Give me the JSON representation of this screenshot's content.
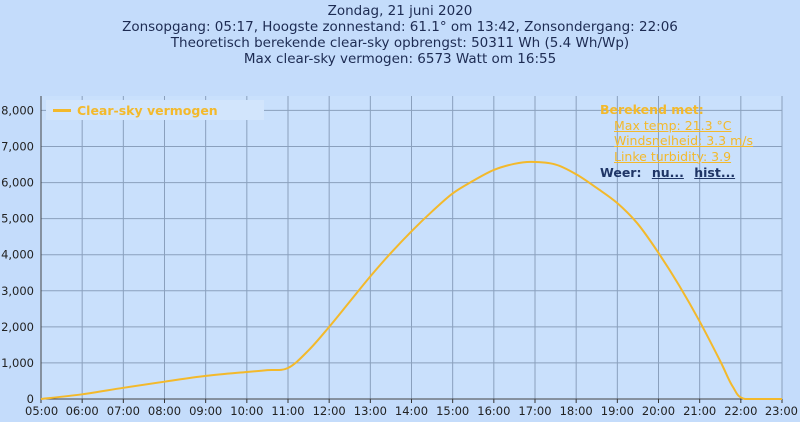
{
  "header": {
    "line1": "Zondag, 21 juni 2020",
    "line2": "Zonsopgang: 05:17, Hoogste zonnestand: 61.1° om 13:42, Zonsondergang: 22:06",
    "line3": "Theoretisch berekende clear-sky opbrengst: 50311 Wh (5.4 Wh/Wp)",
    "line4": "Max clear-sky vermogen: 6573 Watt om 16:55"
  },
  "legend": {
    "label": "Clear-sky vermogen"
  },
  "info": {
    "title": "Berekend met:",
    "max_temp": "Max temp: 21.3 °C",
    "wind": "Windsnelheid: 3.3 m/s",
    "linke": "Linke turbidity: 3.9",
    "weer_label": "Weer:",
    "weer_now": "nu...",
    "weer_hist": "hist..."
  },
  "colors": {
    "background": "#c4dcfb",
    "plot_background": "#c9e0fc",
    "grid": "#8aa0bd",
    "series": "#f3b92b",
    "text": "#1d2b52"
  },
  "chart_data": {
    "type": "line",
    "title": "",
    "xlabel": "",
    "ylabel": "",
    "x_ticks": [
      "05:00",
      "06:00",
      "07:00",
      "08:00",
      "09:00",
      "10:00",
      "11:00",
      "12:00",
      "13:00",
      "14:00",
      "15:00",
      "16:00",
      "17:00",
      "18:00",
      "19:00",
      "20:00",
      "21:00",
      "22:00",
      "23:00"
    ],
    "y_ticks": [
      "0",
      "1,000",
      "2,000",
      "3,000",
      "4,000",
      "5,000",
      "6,000",
      "7,000",
      "8,000"
    ],
    "xlim": [
      5,
      23
    ],
    "ylim": [
      0,
      8400
    ],
    "grid": true,
    "legend_position": "top-left",
    "series": [
      {
        "name": "Clear-sky vermogen",
        "x": [
          5.0,
          6.0,
          7.0,
          8.0,
          9.0,
          10.0,
          10.5,
          11.0,
          11.5,
          12.0,
          12.5,
          13.0,
          13.5,
          14.0,
          14.5,
          15.0,
          15.5,
          16.0,
          16.5,
          16.92,
          17.5,
          18.0,
          18.5,
          19.0,
          19.5,
          20.0,
          20.5,
          21.0,
          21.5,
          21.8,
          22.1,
          23.0
        ],
        "y": [
          0,
          130,
          310,
          480,
          640,
          750,
          800,
          860,
          1350,
          2000,
          2700,
          3400,
          4050,
          4650,
          5200,
          5700,
          6050,
          6350,
          6520,
          6573,
          6500,
          6230,
          5850,
          5430,
          4850,
          4050,
          3150,
          2150,
          1050,
          350,
          0,
          0
        ]
      }
    ]
  }
}
